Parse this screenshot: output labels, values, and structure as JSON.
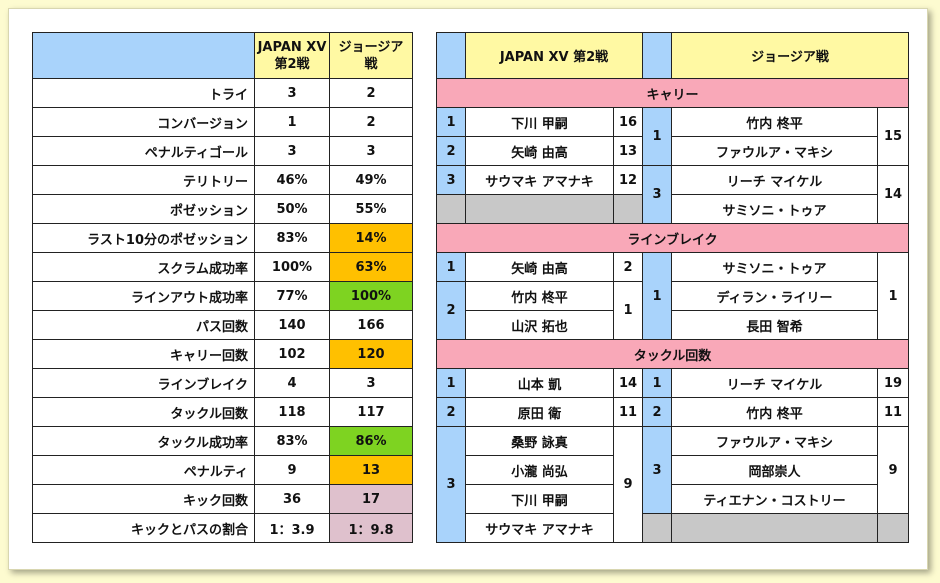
{
  "left_table": {
    "header": {
      "japan": "JAPAN XV\n第2戦",
      "japan_l1": "JAPAN XV",
      "japan_l2": "第2戦",
      "georgia_l1": "ジョージア",
      "georgia_l2": "戦"
    },
    "rows": [
      {
        "label": "トライ",
        "japan": "3",
        "georgia": "2"
      },
      {
        "label": "コンバージョン",
        "japan": "1",
        "georgia": "2"
      },
      {
        "label": "ペナルティゴール",
        "japan": "3",
        "georgia": "3"
      },
      {
        "label": "テリトリー",
        "japan": "46%",
        "georgia": "49%"
      },
      {
        "label": "ポゼッション",
        "japan": "50%",
        "georgia": "55%"
      },
      {
        "label": "ラスト10分のポゼッション",
        "japan": "83%",
        "georgia": "14%"
      },
      {
        "label": "スクラム成功率",
        "japan": "100%",
        "georgia": "63%"
      },
      {
        "label": "ラインアウト成功率",
        "japan": "77%",
        "georgia": "100%"
      },
      {
        "label": "パス回数",
        "japan": "140",
        "georgia": "166"
      },
      {
        "label": "キャリー回数",
        "japan": "102",
        "georgia": "120"
      },
      {
        "label": "ラインブレイク",
        "japan": "4",
        "georgia": "3"
      },
      {
        "label": "タックル回数",
        "japan": "118",
        "georgia": "117"
      },
      {
        "label": "タックル成功率",
        "japan": "83%",
        "georgia": "86%"
      },
      {
        "label": "ペナルティ",
        "japan": "9",
        "georgia": "13"
      },
      {
        "label": "キック回数",
        "japan": "36",
        "georgia": "17"
      },
      {
        "label": "キックとパスの割合",
        "japan": "1：3.9",
        "georgia": "1：9.8"
      }
    ]
  },
  "right_table": {
    "header": {
      "japan": "JAPAN XV 第2戦",
      "georgia": "ジョージア戦"
    },
    "carry": {
      "title": "キャリー",
      "japan": [
        {
          "rank": "1",
          "name": "下川 甲嗣",
          "value": "16"
        },
        {
          "rank": "2",
          "name": "矢崎 由高",
          "value": "13"
        },
        {
          "rank": "3",
          "name": "サウマキ アマナキ",
          "value": "12"
        }
      ],
      "georgia": [
        {
          "rank": "1",
          "names": [
            "竹内 柊平",
            "ファウルア・マキシ"
          ],
          "value": "15"
        },
        {
          "rank": "3",
          "names": [
            "リーチ マイケル",
            "サミソニ・トゥア"
          ],
          "value": "14"
        }
      ]
    },
    "linebreak": {
      "title": "ラインブレイク",
      "japan": [
        {
          "rank": "1",
          "name": "矢崎 由高",
          "value": "2"
        },
        {
          "rank": "2",
          "names": [
            "竹内 柊平",
            "山沢 拓也"
          ],
          "value": "1"
        }
      ],
      "georgia": {
        "rank": "1",
        "names": [
          "サミソニ・トゥア",
          "ディラン・ライリー",
          "長田 智希"
        ],
        "value": "1"
      }
    },
    "tackle": {
      "title": "タックル回数",
      "japan": [
        {
          "rank": "1",
          "name": "山本 凱",
          "value": "14"
        },
        {
          "rank": "2",
          "name": "原田 衛",
          "value": "11"
        },
        {
          "rank": "3",
          "names": [
            "桑野 詠真",
            "小瀧 尚弘",
            "下川 甲嗣",
            "サウマキ アマナキ"
          ],
          "value": "9"
        }
      ],
      "georgia": [
        {
          "rank": "1",
          "name": "リーチ マイケル",
          "value": "19"
        },
        {
          "rank": "2",
          "name": "竹内 柊平",
          "value": "11"
        },
        {
          "rank": "3",
          "names": [
            "ファウルア・マキシ",
            "岡部崇人",
            "ティエナン・コストリー"
          ],
          "value": "9"
        }
      ]
    }
  },
  "colors": {
    "background": "#fdfbd0",
    "header_yellow": "#fff9a3",
    "header_blue": "#a9d3fb",
    "section_pink": "#f9a8b8",
    "orange": "#ffc000",
    "green": "#7ed321",
    "mauve": "#dfc1cd",
    "grey": "#c8c8c8"
  }
}
